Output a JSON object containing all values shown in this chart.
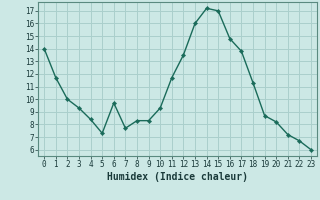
{
  "x": [
    0,
    1,
    2,
    3,
    4,
    5,
    6,
    7,
    8,
    9,
    10,
    11,
    12,
    13,
    14,
    15,
    16,
    17,
    18,
    19,
    20,
    21,
    22,
    23
  ],
  "y": [
    14,
    11.7,
    10,
    9.3,
    8.4,
    7.3,
    9.7,
    7.7,
    8.3,
    8.3,
    9.3,
    11.7,
    13.5,
    16.0,
    17.2,
    17.0,
    14.8,
    13.8,
    11.3,
    8.7,
    8.2,
    7.2,
    6.7,
    6.0
  ],
  "xlabel": "Humidex (Indice chaleur)",
  "bg_color": "#cce8e5",
  "line_color": "#1a6b5a",
  "marker_color": "#1a6b5a",
  "grid_color": "#aacfcc",
  "ylim": [
    5.5,
    17.7
  ],
  "xlim": [
    -0.5,
    23.5
  ],
  "yticks": [
    6,
    7,
    8,
    9,
    10,
    11,
    12,
    13,
    14,
    15,
    16,
    17
  ],
  "xticks": [
    0,
    1,
    2,
    3,
    4,
    5,
    6,
    7,
    8,
    9,
    10,
    11,
    12,
    13,
    14,
    15,
    16,
    17,
    18,
    19,
    20,
    21,
    22,
    23
  ],
  "xlabel_fontsize": 7,
  "tick_fontsize": 5.5
}
